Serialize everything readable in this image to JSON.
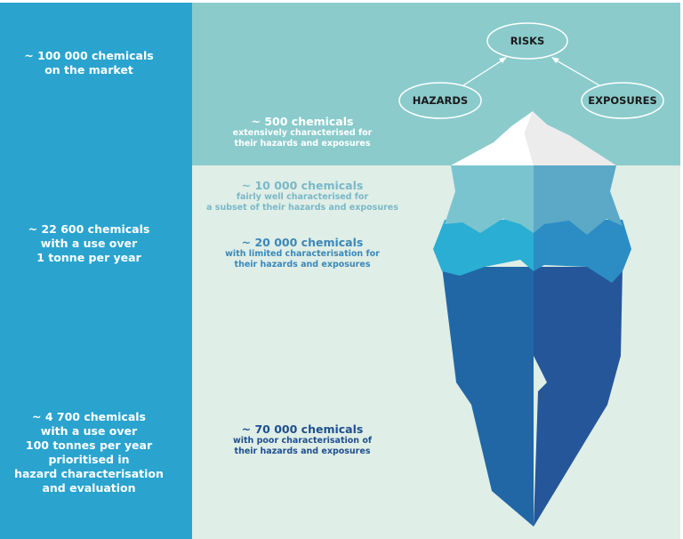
{
  "colors": {
    "left_panel": "#2aa4cf",
    "above_water": "#8bcbcc",
    "below_water": "#dfeee6",
    "tier_500": "#ffffff",
    "tier_10000": "#7ab8c9",
    "tier_20000": "#3b88b9",
    "tier_70000": "#1f4f8f"
  },
  "left_panel": {
    "market": [
      "~ 100 000 chemicals",
      "on the market"
    ],
    "tonne": [
      "~ 22 600 chemicals",
      "with a use over",
      "1 tonne per year"
    ],
    "hundred_tonnes": [
      "~ 4 700 chemicals",
      "with a use over",
      "100 tonnes per year",
      "prioritised in",
      "hazard characterisation",
      "and evaluation"
    ]
  },
  "diagram": {
    "risks": "RISKS",
    "hazards": "HAZARDS",
    "exposures": "EXPOSURES"
  },
  "tiers": [
    {
      "title": "~ 500 chemicals",
      "lines": [
        "extensively characterised for",
        "their hazards and exposures"
      ]
    },
    {
      "title": "~ 10 000 chemicals",
      "lines": [
        "fairly well characterised for",
        "a subset of their hazards and exposures"
      ]
    },
    {
      "title": "~ 20 000 chemicals",
      "lines": [
        "with limited characterisation for",
        "their hazards and exposures"
      ]
    },
    {
      "title": "~ 70 000 chemicals",
      "lines": [
        "with poor characterisation of",
        "their hazards and exposures"
      ]
    }
  ]
}
